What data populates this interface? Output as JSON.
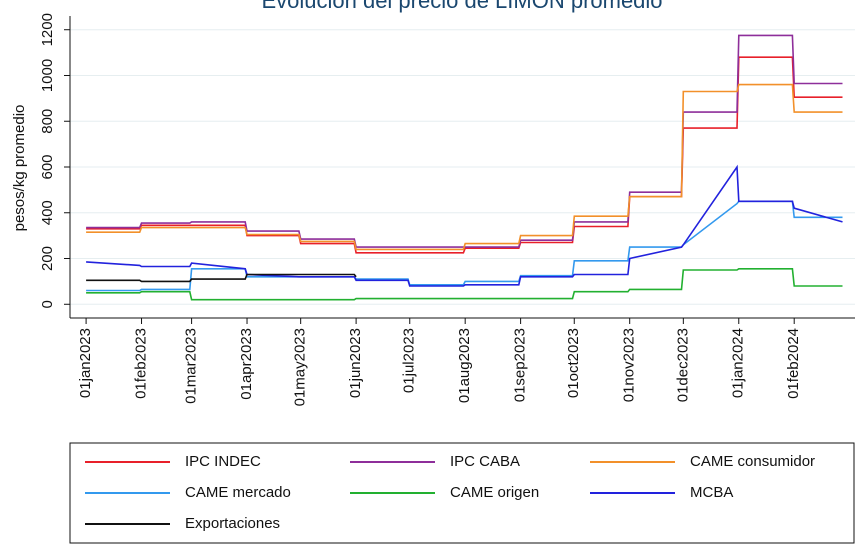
{
  "chart_data": {
    "type": "line",
    "title": "Evolución del precio de LIMÓN promedio",
    "ylabel": "pesos/kg promedio",
    "x": [
      "2023-01-01",
      "2023-01-31",
      "2023-02-01",
      "2023-02-28",
      "2023-03-01",
      "2023-03-31",
      "2023-04-01",
      "2023-04-30",
      "2023-05-01",
      "2023-05-31",
      "2023-06-01",
      "2023-06-30",
      "2023-07-01",
      "2023-07-31",
      "2023-08-01",
      "2023-08-31",
      "2023-09-01",
      "2023-09-30",
      "2023-10-01",
      "2023-10-31",
      "2023-11-01",
      "2023-11-30",
      "2023-12-01",
      "2023-12-31",
      "2024-01-01",
      "2024-01-31",
      "2024-02-01",
      "2024-02-28"
    ],
    "series": [
      {
        "name": "IPC INDEC",
        "color": "#e8202a",
        "values": [
          330,
          330,
          345,
          345,
          345,
          345,
          300,
          300,
          265,
          265,
          225,
          225,
          225,
          225,
          245,
          245,
          270,
          270,
          340,
          340,
          470,
          470,
          770,
          770,
          1080,
          1080,
          905,
          905
        ]
      },
      {
        "name": "IPC CABA",
        "color": "#8e2e9a",
        "values": [
          335,
          335,
          355,
          355,
          360,
          360,
          320,
          320,
          285,
          285,
          250,
          250,
          250,
          250,
          250,
          250,
          280,
          280,
          360,
          360,
          490,
          490,
          840,
          840,
          1175,
          1175,
          965,
          965
        ]
      },
      {
        "name": "CAME consumidor",
        "color": "#f2902a",
        "values": [
          315,
          315,
          335,
          335,
          335,
          335,
          305,
          305,
          275,
          275,
          240,
          240,
          240,
          240,
          265,
          265,
          300,
          300,
          385,
          385,
          470,
          470,
          930,
          930,
          960,
          960,
          840,
          840
        ]
      },
      {
        "name": "CAME mercado",
        "color": "#3399ee",
        "values": [
          60,
          60,
          65,
          65,
          155,
          155,
          120,
          120,
          120,
          120,
          110,
          110,
          85,
          85,
          100,
          100,
          125,
          125,
          190,
          190,
          250,
          250,
          260,
          440,
          450,
          450,
          380,
          380
        ]
      },
      {
        "name": "CAME origen",
        "color": "#22b030",
        "values": [
          50,
          50,
          55,
          55,
          20,
          20,
          20,
          20,
          20,
          20,
          25,
          25,
          25,
          25,
          25,
          25,
          25,
          25,
          55,
          55,
          65,
          65,
          150,
          150,
          155,
          155,
          80,
          80
        ]
      },
      {
        "name": "MCBA",
        "color": "#2222dd",
        "values": [
          185,
          170,
          165,
          165,
          180,
          155,
          130,
          120,
          120,
          120,
          105,
          105,
          80,
          80,
          85,
          85,
          120,
          120,
          130,
          130,
          200,
          250,
          260,
          600,
          450,
          450,
          420,
          360
        ]
      },
      {
        "name": "Exportaciones",
        "color": "#111111",
        "values": [
          105,
          105,
          100,
          100,
          110,
          110,
          130,
          130,
          130,
          130,
          120,
          null,
          null,
          null,
          null,
          null,
          null,
          null,
          null,
          null,
          null,
          null,
          null,
          null,
          null,
          null,
          null,
          null
        ]
      }
    ],
    "xlim": [
      "2022-12-23",
      "2024-03-06"
    ],
    "xticks": [
      {
        "value": "2023-01-01",
        "label": "01jan2023"
      },
      {
        "value": "2023-02-01",
        "label": "01feb2023"
      },
      {
        "value": "2023-03-01",
        "label": "01mar2023"
      },
      {
        "value": "2023-04-01",
        "label": "01apr2023"
      },
      {
        "value": "2023-05-01",
        "label": "01may2023"
      },
      {
        "value": "2023-06-01",
        "label": "01jun2023"
      },
      {
        "value": "2023-07-01",
        "label": "01jul2023"
      },
      {
        "value": "2023-08-01",
        "label": "01aug2023"
      },
      {
        "value": "2023-09-01",
        "label": "01sep2023"
      },
      {
        "value": "2023-10-01",
        "label": "01oct2023"
      },
      {
        "value": "2023-11-01",
        "label": "01nov2023"
      },
      {
        "value": "2023-12-01",
        "label": "01dec2023"
      },
      {
        "value": "2024-01-01",
        "label": "01jan2024"
      },
      {
        "value": "2024-02-01",
        "label": "01feb2024"
      }
    ],
    "ylim": [
      -60,
      1260
    ],
    "yticks": [
      0,
      200,
      400,
      600,
      800,
      1000,
      1200
    ],
    "grid": true
  }
}
